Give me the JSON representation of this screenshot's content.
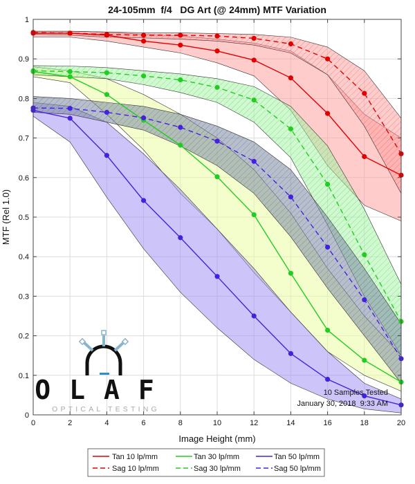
{
  "chart_data": {
    "type": "line",
    "title": "24-105mm  f/4   DG Art (@ 24mm) MTF Variation",
    "xlabel": "Image Height (mm)",
    "ylabel": "MTF (Rel 1.0)",
    "xlim": [
      0,
      20
    ],
    "ylim": [
      0,
      1.0
    ],
    "xticks": [
      "0",
      "2",
      "4",
      "6",
      "8",
      "10",
      "12",
      "14",
      "16",
      "18",
      "20"
    ],
    "yticks": [
      "0",
      "0.1",
      "0.2",
      "0.3",
      "0.4",
      "0.5",
      "0.6",
      "0.7",
      "0.8",
      "0.9",
      "1"
    ],
    "grid": true,
    "x": [
      0,
      2,
      4,
      6,
      8,
      10,
      12,
      14,
      16,
      18,
      20
    ],
    "series": [
      {
        "name": "Tan 10 lp/mm",
        "color": "#e00000",
        "dash": false,
        "values": [
          0.965,
          0.965,
          0.96,
          0.945,
          0.935,
          0.92,
          0.897,
          0.852,
          0.762,
          0.653,
          0.606
        ],
        "low": [
          0.955,
          0.955,
          0.945,
          0.93,
          0.915,
          0.89,
          0.857,
          0.77,
          0.63,
          0.53,
          0.49
        ],
        "high": [
          0.97,
          0.97,
          0.968,
          0.962,
          0.958,
          0.95,
          0.94,
          0.92,
          0.86,
          0.76,
          0.7
        ]
      },
      {
        "name": "Sag 10 lp/mm",
        "color": "#e00000",
        "dash": true,
        "values": [
          0.967,
          0.965,
          0.962,
          0.96,
          0.96,
          0.958,
          0.952,
          0.938,
          0.9,
          0.813,
          0.66
        ],
        "low": [
          0.962,
          0.96,
          0.955,
          0.953,
          0.95,
          0.945,
          0.935,
          0.915,
          0.86,
          0.73,
          0.56
        ],
        "high": [
          0.97,
          0.97,
          0.968,
          0.966,
          0.966,
          0.964,
          0.962,
          0.955,
          0.93,
          0.87,
          0.75
        ]
      },
      {
        "name": "Tan 30 lp/mm",
        "color": "#22cc22",
        "dash": false,
        "values": [
          0.868,
          0.855,
          0.81,
          0.745,
          0.682,
          0.602,
          0.506,
          0.358,
          0.214,
          0.138,
          0.083
        ],
        "low": [
          0.855,
          0.84,
          0.76,
          0.67,
          0.56,
          0.47,
          0.36,
          0.26,
          0.16,
          0.1,
          0.06
        ],
        "high": [
          0.88,
          0.87,
          0.85,
          0.81,
          0.76,
          0.7,
          0.62,
          0.51,
          0.37,
          0.25,
          0.15
        ]
      },
      {
        "name": "Sag 30 lp/mm",
        "color": "#22cc22",
        "dash": true,
        "values": [
          0.87,
          0.868,
          0.865,
          0.857,
          0.847,
          0.828,
          0.796,
          0.723,
          0.583,
          0.405,
          0.236
        ],
        "low": [
          0.86,
          0.855,
          0.85,
          0.835,
          0.815,
          0.79,
          0.74,
          0.65,
          0.48,
          0.3,
          0.15
        ],
        "high": [
          0.883,
          0.882,
          0.878,
          0.87,
          0.862,
          0.85,
          0.83,
          0.78,
          0.68,
          0.52,
          0.33
        ]
      },
      {
        "name": "Tan 50 lp/mm",
        "color": "#4422dd",
        "dash": false,
        "values": [
          0.77,
          0.75,
          0.656,
          0.542,
          0.448,
          0.35,
          0.25,
          0.155,
          0.09,
          0.048,
          0.025
        ],
        "low": [
          0.755,
          0.69,
          0.55,
          0.42,
          0.31,
          0.22,
          0.14,
          0.08,
          0.04,
          0.015,
          0.005
        ],
        "high": [
          0.79,
          0.78,
          0.74,
          0.66,
          0.57,
          0.47,
          0.37,
          0.26,
          0.16,
          0.08,
          0.04
        ]
      },
      {
        "name": "Sag 50 lp/mm",
        "color": "#4422dd",
        "dash": true,
        "values": [
          0.776,
          0.775,
          0.765,
          0.751,
          0.727,
          0.692,
          0.641,
          0.551,
          0.424,
          0.291,
          0.142
        ],
        "low": [
          0.765,
          0.76,
          0.74,
          0.72,
          0.68,
          0.63,
          0.56,
          0.45,
          0.32,
          0.2,
          0.08
        ],
        "high": [
          0.805,
          0.8,
          0.79,
          0.78,
          0.76,
          0.73,
          0.69,
          0.62,
          0.5,
          0.37,
          0.23
        ]
      }
    ],
    "annotations": [
      "10 Samples Tested",
      "January 30, 2018  9:33 AM"
    ],
    "legend_position": "bottom"
  },
  "logo": {
    "name": "OLAF",
    "tagline": "OPTICAL TESTING"
  },
  "colors": {
    "red": "#e00000",
    "red_fill": "#ff9a9a",
    "green": "#22cc22",
    "green_fill": "#9ff59f",
    "blue": "#4422dd",
    "blue_fill": "#9c8cf4",
    "yellow_fill": "#e9fd9b",
    "gray_fill": "#7b8aa0"
  }
}
